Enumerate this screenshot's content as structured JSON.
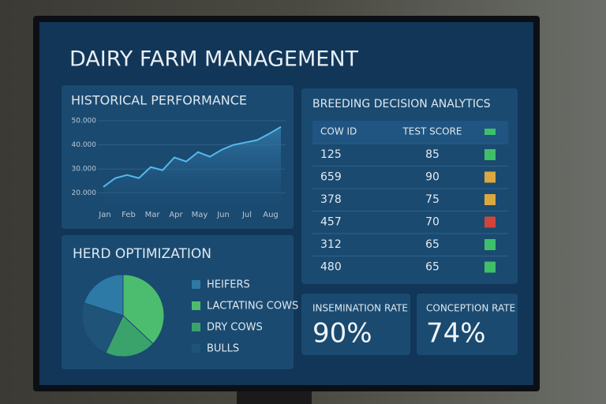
{
  "title": "DAIRY FARM MANAGEMENT",
  "chart_data": [
    {
      "type": "line",
      "title": "HISTORICAL PERFORMANCE",
      "categories": [
        "Jan",
        null,
        "Feb",
        null,
        "Mar",
        null,
        "Apr",
        null,
        "May",
        null,
        "Jun",
        null,
        "Jul",
        null,
        "Aug",
        null
      ],
      "series": [
        {
          "color": "#55b8ec",
          "values": [
            22600,
            26200,
            27500,
            26200,
            30800,
            29500,
            34800,
            33100,
            37000,
            35100,
            38000,
            40000,
            41000,
            42000,
            44600,
            47500
          ]
        }
      ],
      "ylim": [
        15000,
        51000
      ],
      "yticks": [
        {
          "value": 20000,
          "label": "20.000"
        },
        {
          "value": 30000,
          "label": "30.000"
        },
        {
          "value": 40000,
          "label": "40.000"
        },
        {
          "value": 50000,
          "label": "50.000"
        }
      ],
      "grid": true
    },
    {
      "type": "pie",
      "title": "HERD OPTIMIZATION",
      "categories": [
        "HEIFERS",
        "LACTATING COWS",
        "DRY COWS",
        "BULLS"
      ],
      "values": [
        20,
        37,
        20,
        23
      ],
      "colors": [
        "#2d7aa6",
        "#4cbd6e",
        "#3aa36b",
        "#1f5478"
      ]
    }
  ],
  "breeding": {
    "title": "BREEDING DECISION ANALYTICS",
    "columns": [
      "COW ID",
      "TEST SCORE"
    ],
    "header_color": "#3fbf6a",
    "rows": [
      [
        125,
        85
      ],
      [
        659,
        90
      ],
      [
        378,
        75
      ],
      [
        457,
        70
      ],
      [
        312,
        65
      ],
      [
        480,
        65
      ]
    ],
    "status_colors": [
      "#3fbf6a",
      "#d9a840",
      "#d9a840",
      "#d0443a",
      "#3fbf6a",
      "#3fbf6a"
    ]
  },
  "kpis": [
    {
      "label": "INSEMINATION RATE",
      "value": "90%"
    },
    {
      "label": "CONCEPTION RATE",
      "value": "74%"
    }
  ]
}
